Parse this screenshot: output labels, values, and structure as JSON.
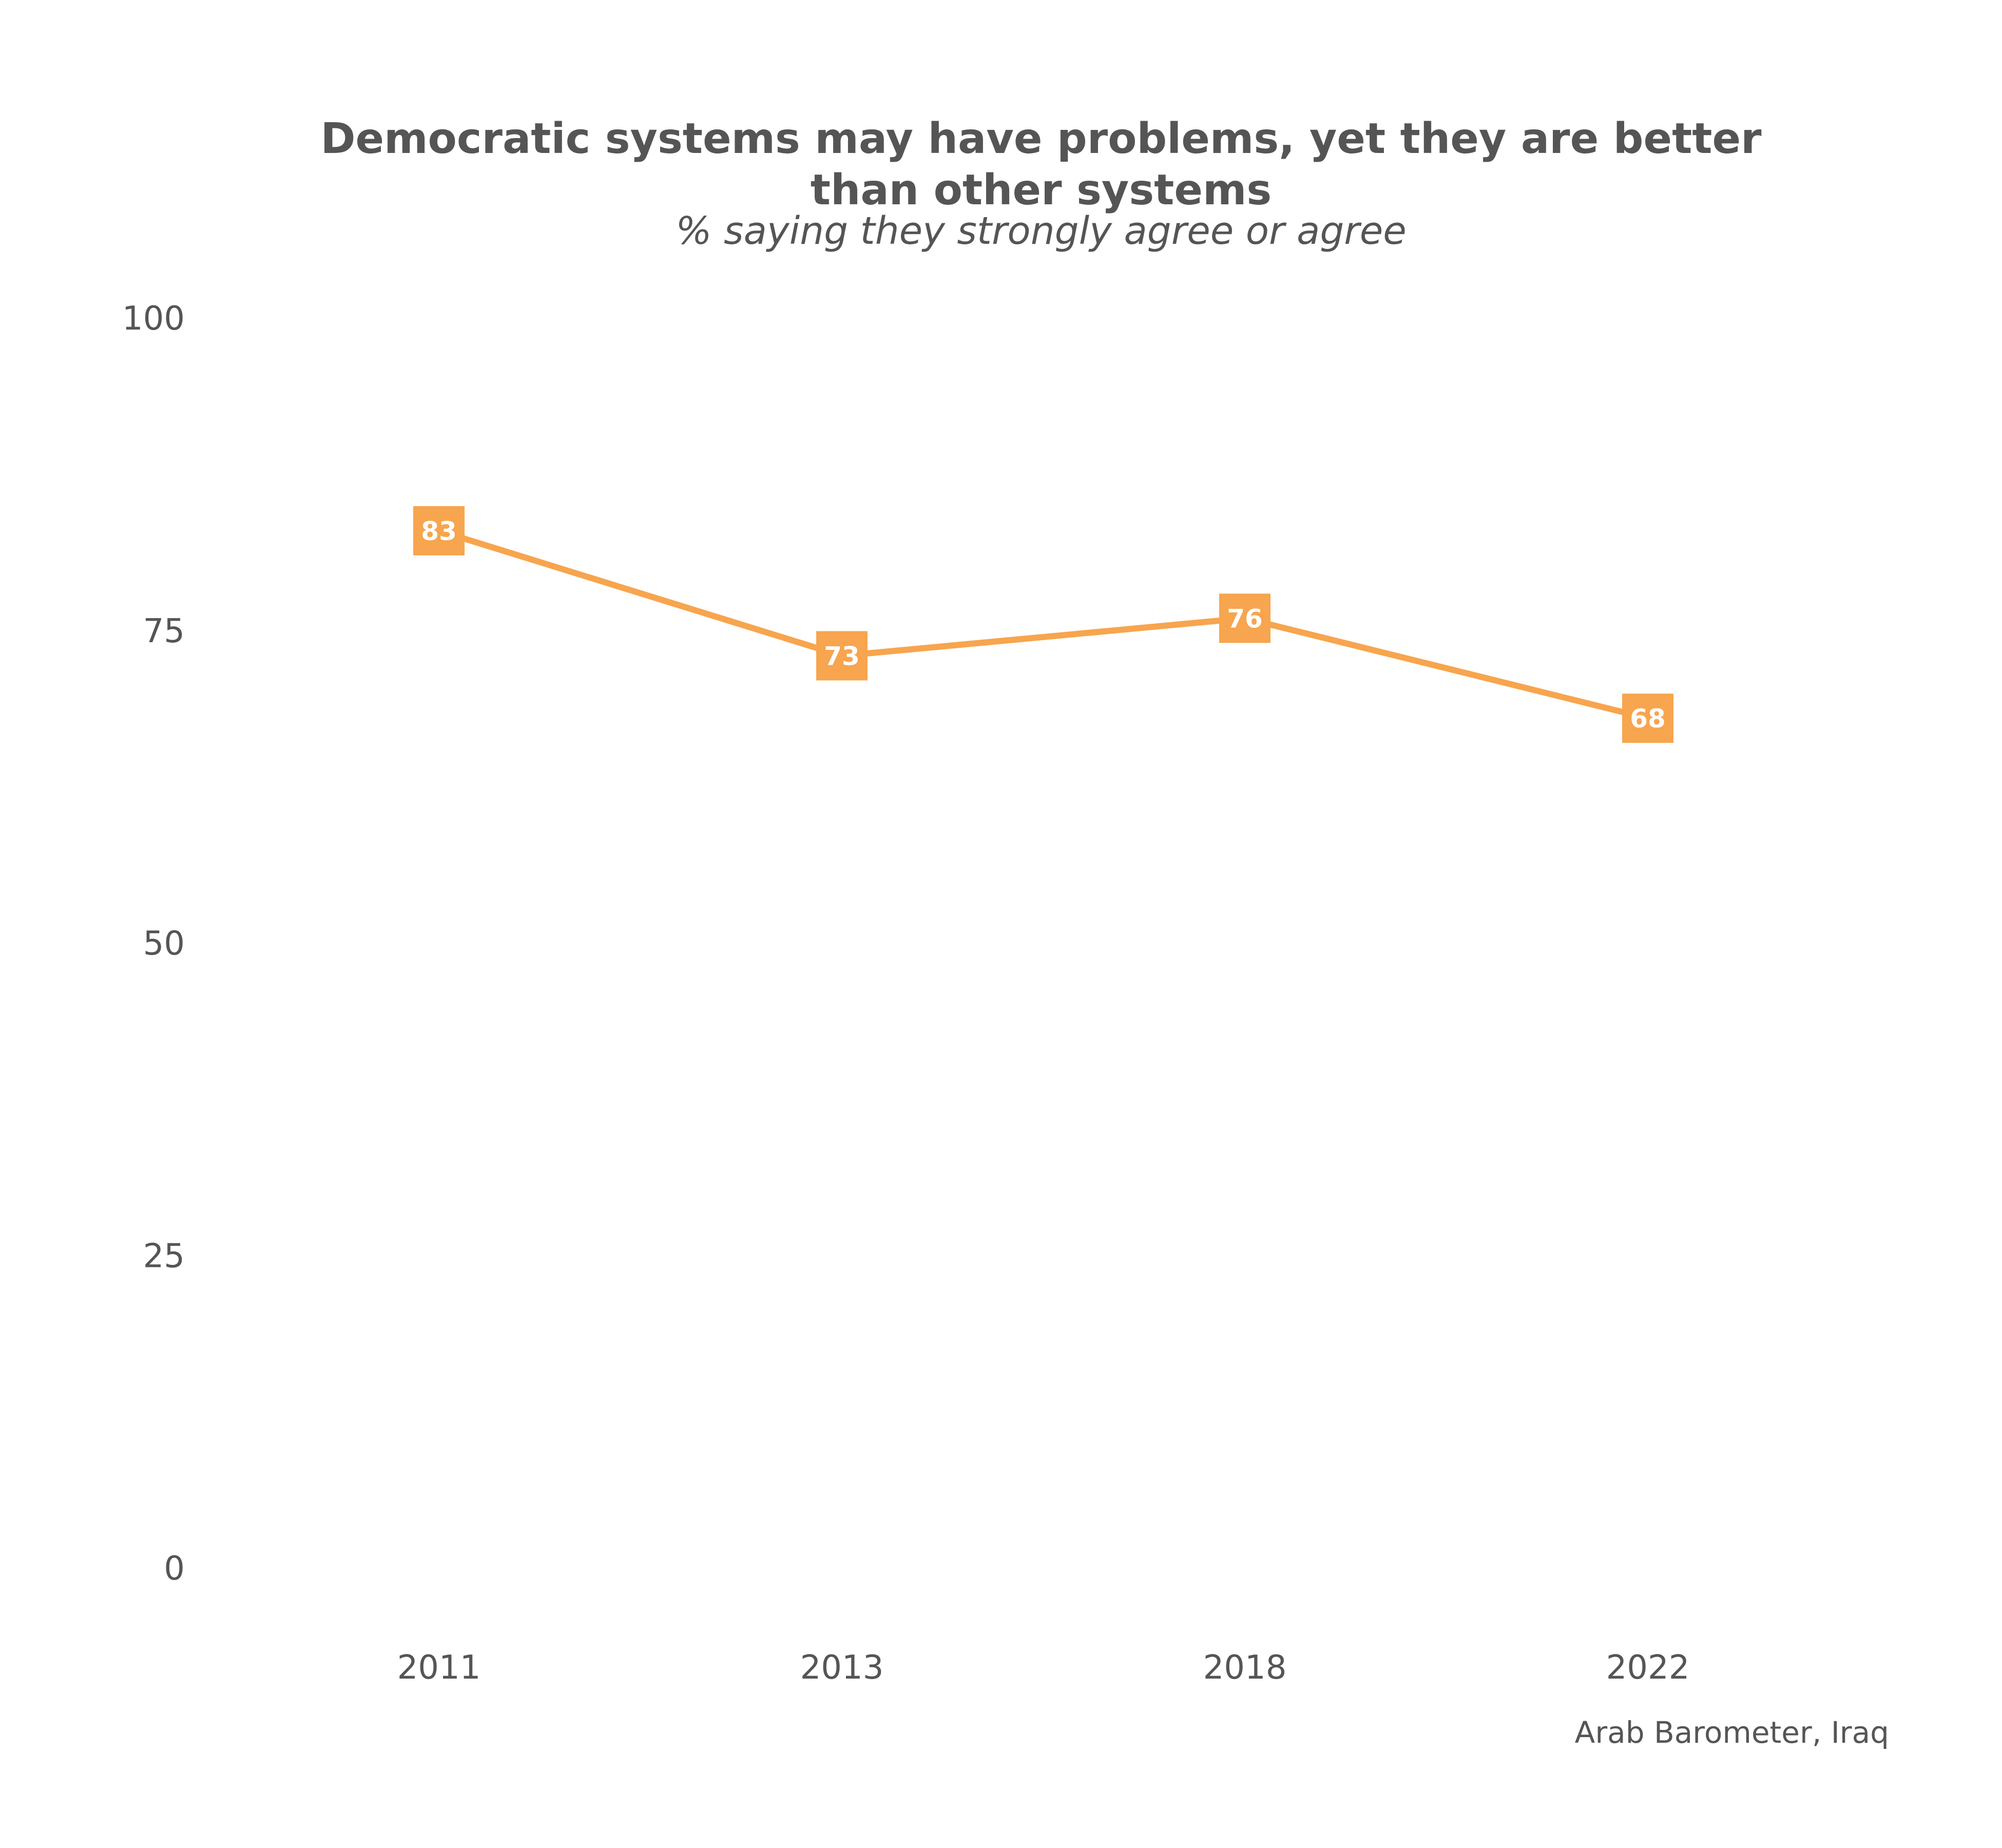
{
  "chart_data": {
    "type": "line",
    "title_lines": [
      "Democratic systems may have problems, yet they are better",
      "than other systems"
    ],
    "subtitle": "% saying they strongly agree or agree",
    "caption": "Arab Barometer, Iraq",
    "categories": [
      "2011",
      "2013",
      "2018",
      "2022"
    ],
    "series": [
      {
        "values": [
          83,
          73,
          76,
          68
        ],
        "labels": [
          "83",
          "73",
          "76",
          "68"
        ],
        "color": "#F7A54E"
      }
    ],
    "ylim": [
      0,
      100
    ],
    "yticks": [
      0,
      25,
      50,
      75,
      100
    ],
    "ytick_labels": [
      "0",
      "25",
      "50",
      "75",
      "100"
    ],
    "grid": false,
    "legend": "none"
  }
}
